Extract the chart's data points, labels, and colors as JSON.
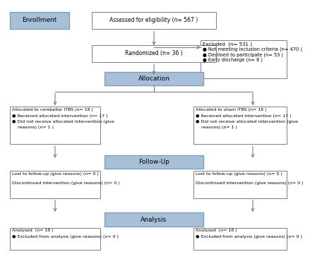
{
  "bg_color": "#ffffff",
  "box_border_color": "#7f7f7f",
  "blue_fill": "#a8bfd8",
  "blue_border": "#7f9fbf",
  "white_fill": "#ffffff",
  "arrow_color": "#7f7f7f",
  "enrollment_label": "Enrollment",
  "allocation_label": "Allocation",
  "followup_label": "Follow-Up",
  "analysis_label": "Analysis",
  "box1_text": "Assessed for eligibility (n= 567 )",
  "box2_line1": "Excluded  (n= 531 )",
  "box2_line2": "● Not meeting inclusion criteria (n= 470 )",
  "box2_line3": "● Declined to participate (n= 53 )",
  "box2_line4": "● Early discharge (n= 8 )",
  "box3_text": "Randomized (n= 36 )",
  "box4_line1": "Allocated to cerebellar iTBS (n= 18 )",
  "box4_line2": "● Received allocated intervention (n= 17 )",
  "box4_line3": "● Did not receive allocated intervention (give",
  "box4_line4": "    reasons) (n= 1 )",
  "box5_line1": "Allocated to sham iTBS (n= 18 )",
  "box5_line2": "● Received allocated intervention (n= 17 )",
  "box5_line3": "● Did not receive allocated intervention (give",
  "box5_line4": "    reasons) (n= 1 )",
  "box6_line1": "Lost to follow-up (give reasons) (n= 0 )",
  "box6_line2": "Discontinued intervention (give reasons) (n= 0 )",
  "box7_line1": "Lost to follow-up (give reasons) (n= 0 )",
  "box7_line2": "Discontinued intervention (give reasons) (n= 0 )",
  "box8_line1": "Analysed  (n= 18 )",
  "box8_line2": "● Excluded from analysis (give reasons) (n= 0 )",
  "box9_line1": "Analysed  (n= 18 )",
  "box9_line2": "● Excluded from analysis (give reasons) (n= 0 )"
}
